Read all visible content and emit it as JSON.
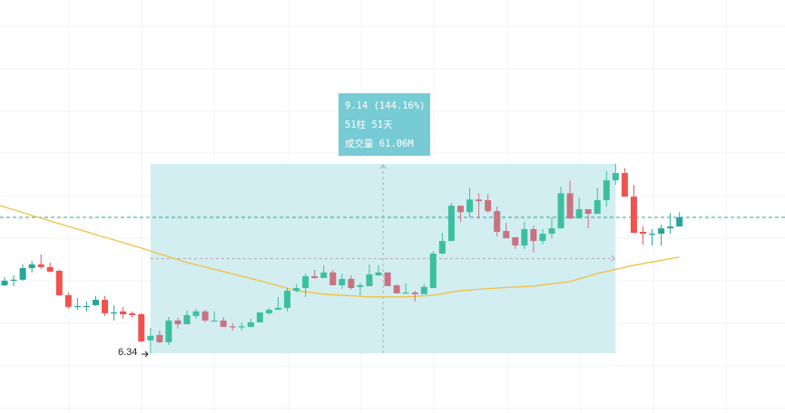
{
  "chart_data": {
    "type": "candlestick",
    "title": "",
    "xlabel": "",
    "ylabel": "",
    "ylim": [
      3.6,
      23.4
    ],
    "grid": true,
    "colors": {
      "up": "#26a69a",
      "down": "#ef5350",
      "up_in_range": "#3cbfa0",
      "down_in_range": "#c97380",
      "ma": "#f0c040",
      "range_fill": "#d2eef1",
      "tooltip_bg": "#76cbd4",
      "last_price_line": "#26a69a"
    },
    "candles": [
      [
        9.62,
        9.84,
        10.02,
        9.58
      ],
      [
        9.86,
        9.89,
        10.1,
        9.58
      ],
      [
        9.89,
        10.45,
        10.63,
        9.84
      ],
      [
        10.45,
        10.63,
        10.8,
        10.24
      ],
      [
        10.63,
        10.5,
        11.11,
        10.41
      ],
      [
        10.5,
        10.28,
        10.72,
        10.24
      ],
      [
        10.32,
        9.14,
        10.37,
        9.1
      ],
      [
        9.14,
        8.58,
        9.27,
        8.49
      ],
      [
        8.6,
        8.62,
        9.01,
        8.44
      ],
      [
        8.6,
        8.62,
        8.84,
        8.36
      ],
      [
        8.66,
        8.92,
        9.1,
        8.62
      ],
      [
        8.92,
        8.27,
        9.1,
        8.14
      ],
      [
        8.29,
        8.31,
        8.66,
        7.92
      ],
      [
        8.36,
        8.22,
        8.57,
        8.01
      ],
      [
        8.27,
        8.18,
        8.36,
        8.05
      ],
      [
        8.22,
        6.91,
        8.27,
        6.87
      ],
      [
        6.96,
        7.18,
        7.57,
        6.34
      ],
      [
        7.22,
        6.87,
        7.44,
        6.83
      ],
      [
        6.87,
        7.92,
        8.09,
        6.74
      ],
      [
        7.92,
        7.74,
        8.05,
        7.53
      ],
      [
        7.74,
        8.18,
        8.4,
        7.74
      ],
      [
        8.14,
        8.36,
        8.49,
        8.01
      ],
      [
        8.36,
        7.92,
        8.44,
        7.83
      ],
      [
        7.9,
        7.92,
        8.36,
        7.9
      ],
      [
        7.92,
        7.61,
        8.09,
        7.61
      ],
      [
        7.64,
        7.61,
        7.79,
        7.44
      ],
      [
        7.61,
        7.64,
        7.83,
        7.44
      ],
      [
        7.61,
        7.83,
        8.01,
        7.61
      ],
      [
        7.83,
        8.31,
        8.31,
        7.83
      ],
      [
        8.27,
        8.44,
        8.53,
        8.18
      ],
      [
        8.44,
        8.53,
        9.05,
        8.44
      ],
      [
        8.53,
        9.36,
        9.49,
        8.36
      ],
      [
        9.36,
        9.49,
        9.67,
        9.27
      ],
      [
        9.49,
        10.06,
        10.19,
        9.05
      ],
      [
        10.06,
        9.97,
        10.37,
        9.93
      ],
      [
        9.97,
        10.24,
        10.59,
        9.97
      ],
      [
        10.24,
        9.62,
        10.37,
        9.62
      ],
      [
        9.62,
        9.93,
        10.19,
        9.45
      ],
      [
        9.93,
        9.49,
        10.1,
        9.41
      ],
      [
        9.54,
        9.62,
        9.76,
        9.14
      ],
      [
        9.58,
        10.15,
        10.63,
        9.58
      ],
      [
        10.1,
        10.24,
        10.59,
        10.06
      ],
      [
        10.24,
        9.58,
        10.24,
        9.58
      ],
      [
        9.62,
        9.23,
        9.67,
        9.23
      ],
      [
        9.25,
        9.27,
        9.71,
        9.23
      ],
      [
        9.27,
        9.19,
        9.36,
        8.84
      ],
      [
        9.19,
        9.54,
        9.67,
        9.19
      ],
      [
        9.49,
        11.15,
        11.28,
        9.49
      ],
      [
        11.15,
        11.76,
        12.15,
        11.11
      ],
      [
        11.76,
        13.46,
        13.59,
        11.76
      ],
      [
        13.46,
        13.15,
        13.46,
        12.67
      ],
      [
        13.15,
        13.76,
        14.33,
        12.9
      ],
      [
        13.76,
        13.68,
        14.06,
        12.85
      ],
      [
        13.73,
        13.2,
        14.02,
        13.11
      ],
      [
        13.2,
        12.2,
        13.42,
        11.98
      ],
      [
        12.24,
        11.89,
        12.63,
        11.89
      ],
      [
        11.94,
        11.54,
        11.94,
        11.37
      ],
      [
        11.54,
        12.33,
        12.68,
        11.37
      ],
      [
        12.33,
        11.76,
        12.5,
        11.2
      ],
      [
        11.76,
        12.11,
        12.33,
        11.59
      ],
      [
        12.11,
        12.37,
        12.9,
        11.89
      ],
      [
        12.37,
        14.06,
        14.37,
        12.37
      ],
      [
        14.06,
        12.85,
        14.67,
        12.81
      ],
      [
        12.85,
        13.29,
        13.85,
        12.85
      ],
      [
        13.29,
        13.07,
        13.29,
        12.37
      ],
      [
        13.07,
        13.73,
        14.33,
        13.07
      ],
      [
        13.73,
        14.69,
        15.13,
        13.42
      ],
      [
        14.69,
        15.04,
        15.48,
        14.47
      ],
      [
        15.04,
        13.9,
        15.28,
        13.9
      ],
      [
        13.9,
        12.15,
        14.47,
        12.15
      ],
      [
        12.2,
        12.11,
        12.46,
        11.59
      ],
      [
        12.09,
        12.11,
        12.33,
        11.54
      ],
      [
        12.11,
        12.37,
        12.55,
        11.54
      ],
      [
        12.37,
        12.46,
        13.11,
        12.11
      ],
      [
        12.46,
        12.9,
        13.15,
        12.46
      ]
    ],
    "candle_fields": [
      "open",
      "close",
      "high",
      "low"
    ],
    "moving_average": [
      [
        0,
        13.47
      ],
      [
        4,
        12.86
      ],
      [
        10,
        12.07
      ],
      [
        15,
        11.42
      ],
      [
        20,
        10.72
      ],
      [
        24,
        10.28
      ],
      [
        28,
        9.84
      ],
      [
        32,
        9.36
      ],
      [
        35,
        9.19
      ],
      [
        40,
        9.06
      ],
      [
        44,
        9.06
      ],
      [
        47,
        9.14
      ],
      [
        50,
        9.36
      ],
      [
        54,
        9.49
      ],
      [
        58,
        9.58
      ],
      [
        62,
        9.8
      ],
      [
        65,
        10.19
      ],
      [
        69,
        10.59
      ],
      [
        74,
        10.98
      ]
    ],
    "last_price": 12.9,
    "measure": {
      "start_index": 16,
      "end_index": 67,
      "low": 6.34,
      "high": 15.48,
      "low_label": "6.34",
      "line1": "9.14 (144.16%)",
      "line2": "51柱 51天",
      "line3": "成交量 61.06M"
    }
  }
}
